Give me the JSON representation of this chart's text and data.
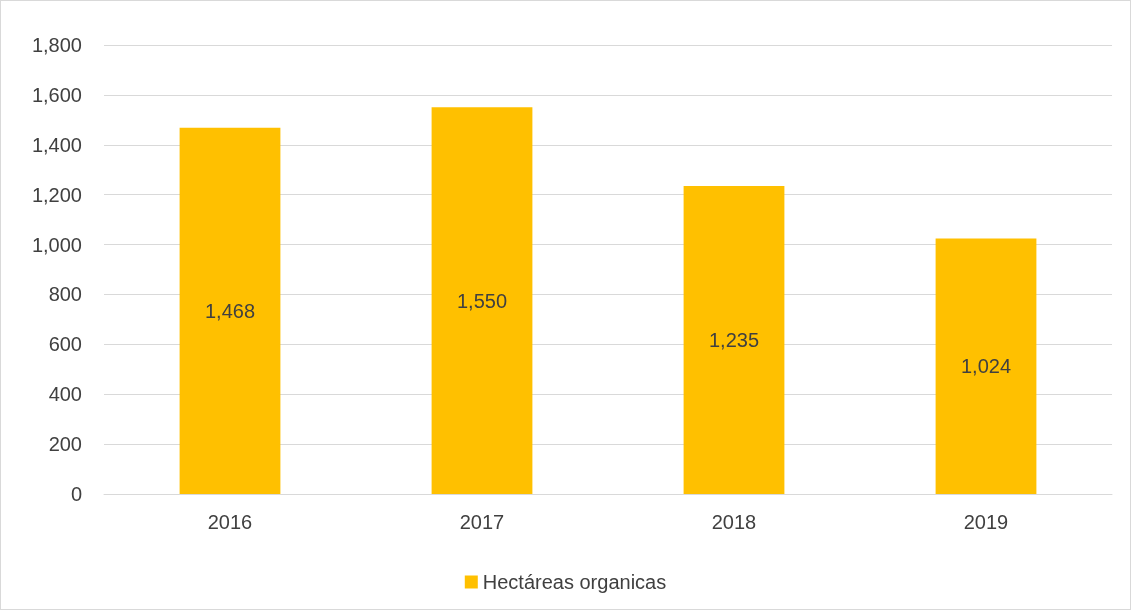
{
  "chart_data": {
    "type": "bar",
    "categories": [
      "2016",
      "2017",
      "2018",
      "2019"
    ],
    "series": [
      {
        "name": "Hectáreas organicas",
        "color": "#ffc000",
        "values": [
          1468,
          1550,
          1235,
          1024
        ],
        "value_labels": [
          "1,468",
          "1,550",
          "1,235",
          "1,024"
        ]
      }
    ],
    "ylim": [
      0,
      1800
    ],
    "yticks": [
      0,
      200,
      400,
      600,
      800,
      {
        "value": 1000,
        "label": "1,000"
      },
      {
        "value": 1200,
        "label": "1,200"
      },
      {
        "value": 1400,
        "label": "1,400"
      },
      {
        "value": 1600,
        "label": "1,600"
      },
      {
        "value": 1800,
        "label": "1,800"
      }
    ],
    "grid": "y",
    "legend": "bottom"
  }
}
